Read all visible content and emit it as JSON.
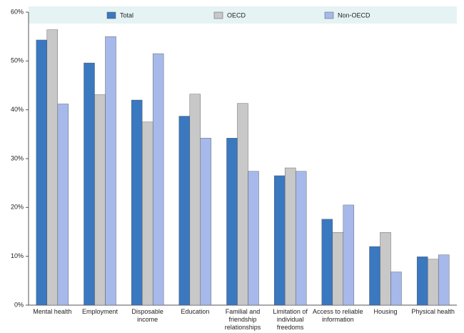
{
  "chart_data": {
    "type": "bar",
    "categories": [
      "Mental health",
      "Employment",
      "Disposable\nincome",
      "Education",
      "Familial and\nfriendship\nrelationships",
      "Limitation of\nindividual\nfreedoms",
      "Access to reliable\ninformation",
      "Housing",
      "Physical health"
    ],
    "series": [
      {
        "name": "Total",
        "color": "#3a78c0",
        "values": [
          54.3,
          49.6,
          42.0,
          38.7,
          34.2,
          26.5,
          17.6,
          12.0,
          9.9
        ]
      },
      {
        "name": "OECD",
        "color": "#c8c8c8",
        "values": [
          56.4,
          43.1,
          37.5,
          43.2,
          41.3,
          28.1,
          14.9,
          14.9,
          9.4
        ]
      },
      {
        "name": "Non-OECD",
        "color": "#a6b9ea",
        "values": [
          41.2,
          55.0,
          51.5,
          34.2,
          27.4,
          27.4,
          20.5,
          6.8,
          10.3
        ]
      }
    ],
    "ylim": [
      0,
      60
    ],
    "yticks": [
      {
        "value": 0,
        "label": "0%"
      },
      {
        "value": 10,
        "label": "10%"
      },
      {
        "value": 20,
        "label": "20%"
      },
      {
        "value": 30,
        "label": "30%"
      },
      {
        "value": 40,
        "label": "40%"
      },
      {
        "value": 50,
        "label": "50%"
      },
      {
        "value": 60,
        "label": "60%"
      }
    ],
    "legend": "top"
  }
}
